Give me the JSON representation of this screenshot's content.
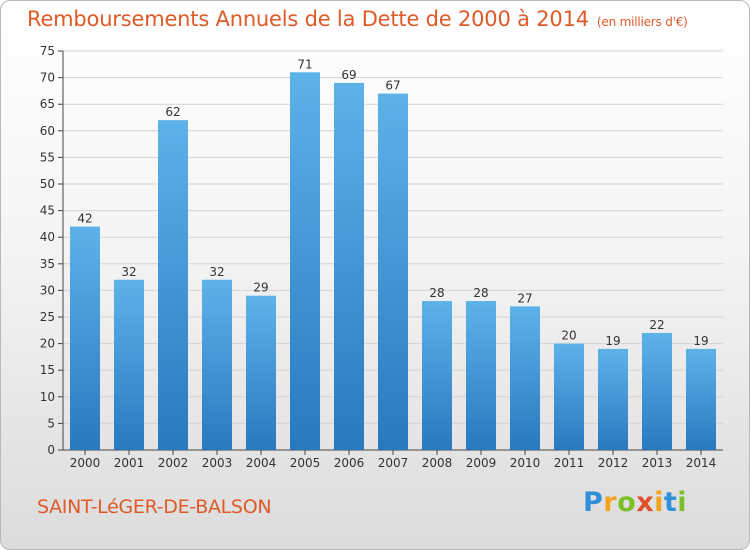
{
  "header": {
    "title": "Remboursements Annuels de la Dette de 2000 à 2014",
    "unit": "(en milliers d'€)"
  },
  "footer": {
    "town": "SAINT-LéGER-DE-BALSON",
    "brand": "Proxiti"
  },
  "colors": {
    "accent": "#e05a28",
    "bar_top": "#5aaee6",
    "bar_bottom": "#2a78bf"
  },
  "chart_data": {
    "type": "bar",
    "title": "Remboursements Annuels de la Dette de 2000 à 2014",
    "xlabel": "",
    "ylabel": "",
    "categories": [
      "2000",
      "2001",
      "2002",
      "2003",
      "2004",
      "2005",
      "2006",
      "2007",
      "2008",
      "2009",
      "2010",
      "2011",
      "2012",
      "2013",
      "2014"
    ],
    "values": [
      42,
      32,
      62,
      32,
      29,
      71,
      69,
      67,
      28,
      28,
      27,
      20,
      19,
      22,
      19
    ],
    "ylim": [
      0,
      75
    ],
    "yticks": [
      0,
      5,
      10,
      15,
      20,
      25,
      30,
      35,
      40,
      45,
      50,
      55,
      60,
      65,
      70,
      75
    ],
    "grid": true
  }
}
